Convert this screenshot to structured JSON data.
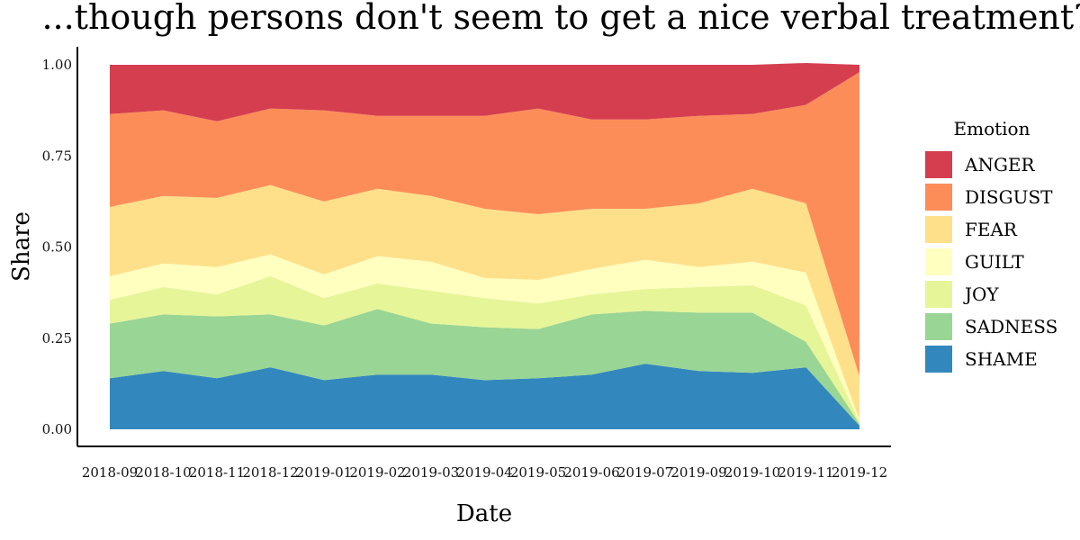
{
  "chart_data": {
    "type": "area",
    "stacked": true,
    "normalized": true,
    "title": "...though persons don't seem to get a nice verbal treatment?",
    "xlabel": "Date",
    "ylabel": "Share",
    "ylim": [
      0,
      1
    ],
    "yticks": [
      "0.00",
      "0.25",
      "0.50",
      "0.75",
      "1.00"
    ],
    "ytick_values": [
      0,
      0.25,
      0.5,
      0.75,
      1.0
    ],
    "grid": false,
    "legend_title": "Emotion",
    "legend_position": "right",
    "x": [
      "2018-09",
      "2018-10",
      "2018-11",
      "2018-12",
      "2019-01",
      "2019-02",
      "2019-03",
      "2019-04",
      "2019-05",
      "2019-06",
      "2019-07",
      "2019-09",
      "2019-10",
      "2019-11",
      "2019-12"
    ],
    "series": [
      {
        "name": "SHAME",
        "color": "#3288bd",
        "values": [
          0.14,
          0.16,
          0.14,
          0.17,
          0.135,
          0.15,
          0.15,
          0.135,
          0.14,
          0.15,
          0.18,
          0.16,
          0.155,
          0.17,
          0.01
        ]
      },
      {
        "name": "SADNESS",
        "color": "#99d594",
        "values": [
          0.15,
          0.155,
          0.17,
          0.145,
          0.15,
          0.18,
          0.14,
          0.145,
          0.135,
          0.165,
          0.145,
          0.16,
          0.165,
          0.07,
          0.005
        ]
      },
      {
        "name": "JOY",
        "color": "#e6f598",
        "values": [
          0.065,
          0.075,
          0.06,
          0.105,
          0.075,
          0.07,
          0.09,
          0.08,
          0.07,
          0.055,
          0.06,
          0.07,
          0.075,
          0.1,
          0.005
        ]
      },
      {
        "name": "GUILT",
        "color": "#ffffbf",
        "values": [
          0.065,
          0.065,
          0.075,
          0.06,
          0.065,
          0.075,
          0.08,
          0.055,
          0.065,
          0.07,
          0.08,
          0.055,
          0.065,
          0.09,
          0.005
        ]
      },
      {
        "name": "FEAR",
        "color": "#fee08b",
        "values": [
          0.19,
          0.185,
          0.19,
          0.19,
          0.2,
          0.185,
          0.18,
          0.19,
          0.18,
          0.165,
          0.14,
          0.175,
          0.2,
          0.19,
          0.12
        ]
      },
      {
        "name": "DISGUST",
        "color": "#fc8d59",
        "values": [
          0.255,
          0.235,
          0.21,
          0.21,
          0.25,
          0.2,
          0.22,
          0.255,
          0.29,
          0.245,
          0.245,
          0.24,
          0.205,
          0.27,
          0.835
        ]
      },
      {
        "name": "ANGER",
        "color": "#d53e4f",
        "values": [
          0.135,
          0.125,
          0.155,
          0.12,
          0.125,
          0.14,
          0.14,
          0.14,
          0.12,
          0.15,
          0.15,
          0.14,
          0.135,
          0.115,
          0.02
        ]
      }
    ],
    "legend_order": [
      "ANGER",
      "DISGUST",
      "FEAR",
      "GUILT",
      "JOY",
      "SADNESS",
      "SHAME"
    ]
  }
}
